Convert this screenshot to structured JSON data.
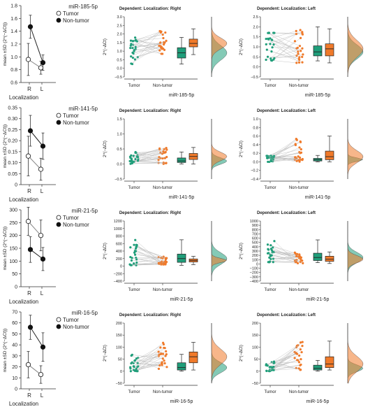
{
  "figure": {
    "rows": [
      {
        "mirna": "miR-185-5p",
        "line_chart": {
          "type": "line",
          "ylabel": "mean ±SD (2^(−ΔCt))",
          "xlabel": "Localization",
          "categories": [
            "R",
            "L"
          ],
          "ylim": [
            0.6,
            1.8
          ],
          "yticks": [
            "0.6",
            "0.8",
            "1.0",
            "1.2",
            "1.4",
            "1.6",
            "1.8"
          ],
          "series": [
            {
              "name": "Tumor",
              "marker": "open",
              "values": [
                0.96,
                0.83
              ],
              "sd": [
                0.25,
                0.1
              ]
            },
            {
              "name": "Non-tumor",
              "marker": "filled",
              "values": [
                1.47,
                0.91
              ],
              "sd": [
                0.18,
                0.12
              ]
            }
          ]
        },
        "right_panel": {
          "title": "Dependent: Localization: Right",
          "ylabel": "2^(−ΔCt)",
          "xlabel": "miR-185-5p",
          "ylim": [
            -0.5,
            3.0
          ],
          "yticks": [
            "−0.5",
            "0.0",
            "0.5",
            "1.0",
            "1.5",
            "2.0",
            "2.5",
            "3.0"
          ],
          "categories": [
            "Tumor",
            "Non-tumor"
          ],
          "box_tumor": [
            0.25,
            0.6,
            0.9,
            1.2,
            1.8
          ],
          "box_nontumor": [
            0.8,
            1.25,
            1.45,
            1.7,
            2.3
          ]
        },
        "left_panel": {
          "title": "Dependent: Localization: Left",
          "ylabel": "2^(−ΔCt)",
          "xlabel": "miR-185-5p",
          "ylim": [
            -0.5,
            2.5
          ],
          "yticks": [
            "−0.5",
            "0.0",
            "0.5",
            "1.0",
            "1.5",
            "2.0",
            "2.5"
          ],
          "categories": [
            "Tumor",
            "Non-tumor"
          ],
          "box_tumor": [
            0.3,
            0.55,
            0.75,
            1.05,
            2.0
          ],
          "box_nontumor": [
            0.2,
            0.55,
            0.9,
            1.15,
            1.9
          ]
        }
      },
      {
        "mirna": "miR-141-5p",
        "line_chart": {
          "type": "line",
          "ylabel": "mean ±SD (2^(−ΔCt))",
          "xlabel": "Localization",
          "categories": [
            "R",
            "L"
          ],
          "ylim": [
            0.0,
            0.35
          ],
          "yticks": [
            "0",
            "0.05",
            "0.10",
            "0.15",
            "0.20",
            "0.25",
            "0.30",
            "0.35"
          ],
          "series": [
            {
              "name": "Tumor",
              "marker": "open",
              "values": [
                0.13,
                0.07
              ],
              "sd": [
                0.09,
                0.05
              ]
            },
            {
              "name": "Non-tumor",
              "marker": "filled",
              "values": [
                0.245,
                0.175
              ],
              "sd": [
                0.07,
                0.06
              ]
            }
          ]
        },
        "right_panel": {
          "title": "Dependent: Localization: Right",
          "ylabel": "2^(−ΔCt)",
          "xlabel": "miR-141-5p",
          "ylim": [
            -0.5,
            1.5
          ],
          "yticks": [
            "−0.5",
            "0.0",
            "0.5",
            "1.0",
            "1.5"
          ],
          "categories": [
            "Tumor",
            "Non-tumor"
          ],
          "box_tumor": [
            0.0,
            0.05,
            0.1,
            0.2,
            0.4
          ],
          "box_nontumor": [
            0.0,
            0.15,
            0.25,
            0.35,
            0.55
          ]
        },
        "left_panel": {
          "title": "Dependent: Localization: Left",
          "ylabel": "2^(−ΔCt)",
          "xlabel": "miR-141-5p",
          "ylim": [
            -0.4,
            1.0
          ],
          "yticks": [
            "−0.4",
            "−0.2",
            "0.0",
            "0.2",
            "0.4",
            "0.6",
            "0.8",
            "1.0"
          ],
          "categories": [
            "Tumor",
            "Non-tumor"
          ],
          "box_tumor": [
            0.0,
            0.02,
            0.05,
            0.08,
            0.15
          ],
          "box_nontumor": [
            0.0,
            0.05,
            0.12,
            0.25,
            0.6
          ]
        }
      },
      {
        "mirna": "miR-21-5p",
        "line_chart": {
          "type": "line",
          "ylabel": "mean ±SD (2^(−ΔCt))",
          "xlabel": "Localization",
          "categories": [
            "R",
            "L"
          ],
          "ylim": [
            0,
            300
          ],
          "yticks": [
            "0",
            "50",
            "100",
            "150",
            "200",
            "250",
            "300"
          ],
          "series": [
            {
              "name": "Tumor",
              "marker": "open",
              "values": [
                255,
                200
              ],
              "sd": [
                55,
                60
              ]
            },
            {
              "name": "Non-tumor",
              "marker": "filled",
              "values": [
                145,
                108
              ],
              "sd": [
                50,
                45
              ]
            }
          ]
        },
        "right_panel": {
          "title": "Dependent: Localization: Right",
          "ylabel": "2^(−ΔCt)",
          "xlabel": "miR-21-5p",
          "ylim": [
            -400,
            1200
          ],
          "yticks": [
            "−400",
            "−200",
            "0",
            "200",
            "400",
            "600",
            "800",
            "1000",
            "1200"
          ],
          "categories": [
            "Tumor",
            "Non-tumor"
          ],
          "box_tumor": [
            20,
            100,
            200,
            320,
            700
          ],
          "box_nontumor": [
            40,
            110,
            150,
            190,
            260
          ]
        },
        "left_panel": {
          "title": "Dependent: Localization: Left",
          "ylabel": "2^(−ΔCt)",
          "xlabel": "miR-21-5p",
          "ylim": [
            -400,
            1000
          ],
          "yticks": [
            "−400",
            "−300",
            "−200",
            "−100",
            "0",
            "100",
            "200",
            "300",
            "400",
            "500",
            "600",
            "700",
            "800",
            "900",
            "1000"
          ],
          "categories": [
            "Tumor",
            "Non-tumor"
          ],
          "box_tumor": [
            30,
            80,
            150,
            250,
            560
          ],
          "box_nontumor": [
            10,
            60,
            110,
            180,
            280
          ]
        }
      },
      {
        "mirna": "miR-16-5p",
        "line_chart": {
          "type": "line",
          "ylabel": "mean ±SD (2^(−ΔCt))",
          "xlabel": "Localization",
          "categories": [
            "R",
            "L"
          ],
          "ylim": [
            0,
            70
          ],
          "yticks": [
            "0",
            "10",
            "20",
            "30",
            "40",
            "50",
            "60",
            "70"
          ],
          "series": [
            {
              "name": "Tumor",
              "marker": "open",
              "values": [
                22,
                13
              ],
              "sd": [
                12,
                8
              ]
            },
            {
              "name": "Non-tumor",
              "marker": "filled",
              "values": [
                56,
                38
              ],
              "sd": [
                11,
                13
              ]
            }
          ]
        },
        "right_panel": {
          "title": "Dependent: Localization: Right",
          "ylabel": "2^(−ΔCt)",
          "xlabel": "miR-16-5p",
          "ylim": [
            -50,
            200
          ],
          "yticks": [
            "−50",
            "0",
            "50",
            "100",
            "150",
            "200"
          ],
          "categories": [
            "Tumor",
            "Non-tumor"
          ],
          "box_tumor": [
            0,
            5,
            15,
            35,
            70
          ],
          "box_nontumor": [
            5,
            35,
            60,
            80,
            120
          ]
        },
        "left_panel": {
          "title": "Dependent: Localization: Left",
          "ylabel": "2^(−ΔCt)",
          "xlabel": "miR-16-5p",
          "ylim": [
            -50,
            200
          ],
          "yticks": [
            "−50",
            "0",
            "50",
            "100",
            "150",
            "200"
          ],
          "categories": [
            "Tumor",
            "Non-tumor"
          ],
          "box_tumor": [
            0,
            5,
            12,
            25,
            45
          ],
          "box_nontumor": [
            5,
            15,
            30,
            60,
            125
          ]
        }
      }
    ]
  },
  "colors": {
    "tumor": "#1f9e7a",
    "nontumor": "#f07a2a",
    "pairline": "#b8b8b8",
    "axis": "#333333"
  }
}
